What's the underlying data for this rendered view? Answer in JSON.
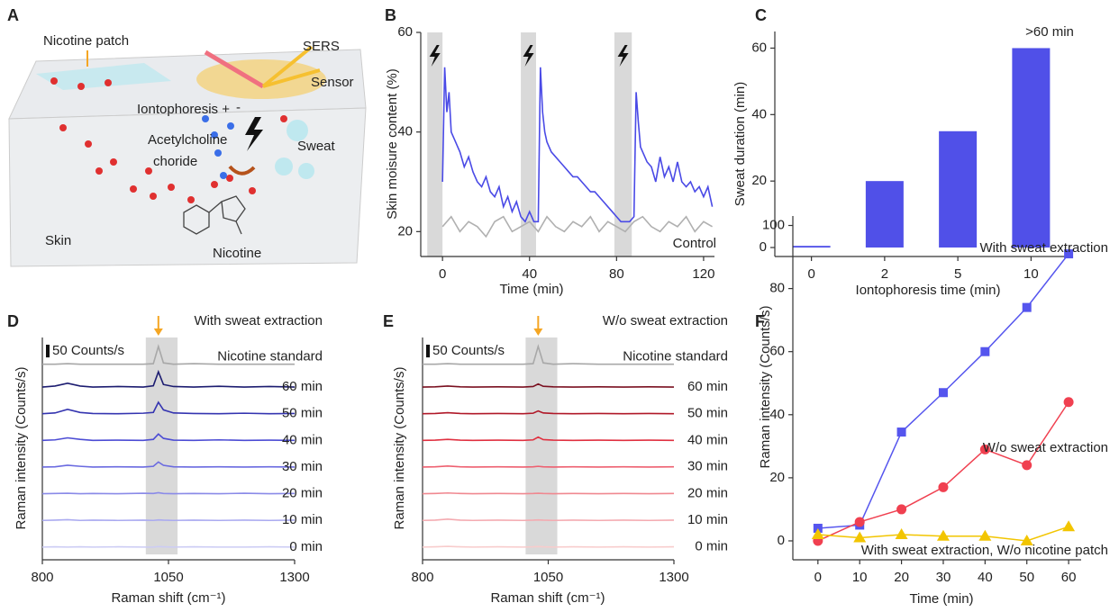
{
  "diagram": {
    "letter": "A",
    "labels": [
      "Nicotine patch",
      "SERS",
      "Sensor",
      "Iontophoresis +",
      "-",
      "Acetylcholine",
      "choride",
      "Sweat",
      "Skin",
      "Nicotine"
    ]
  },
  "chart_data": [
    {
      "type": "line",
      "letter": "B",
      "xlabel": "Time (min)",
      "ylabel": "Skin moisure content (%)",
      "xlim": [
        -10,
        125
      ],
      "ylim": [
        15,
        60
      ],
      "xticks": [
        0,
        40,
        80,
        120
      ],
      "yticks": [
        20,
        40,
        60
      ],
      "shaded_ranges": [
        [
          -7,
          0
        ],
        [
          36,
          43
        ],
        [
          79,
          87
        ]
      ],
      "series": [
        {
          "color": "#4a4ae6",
          "x": [
            0,
            1,
            2,
            3,
            4,
            6,
            8,
            10,
            12,
            14,
            16,
            18,
            20,
            22,
            24,
            26,
            28,
            30,
            32,
            34,
            36,
            38,
            40,
            42,
            44,
            45,
            46,
            47,
            48,
            50,
            52,
            54,
            56,
            58,
            60,
            62,
            64,
            66,
            68,
            70,
            72,
            74,
            76,
            78,
            80,
            82,
            84,
            86,
            88,
            89,
            90,
            91,
            92,
            94,
            96,
            98,
            100,
            102,
            104,
            106,
            108,
            110,
            112,
            114,
            116,
            118,
            120,
            122,
            124
          ],
          "values": [
            30,
            53,
            44,
            48,
            40,
            38,
            36,
            33,
            35,
            32,
            30,
            29,
            31,
            28,
            27,
            29,
            25,
            27,
            24,
            26,
            23,
            22,
            24,
            22,
            22,
            53,
            44,
            40,
            38,
            36,
            35,
            34,
            33,
            32,
            31,
            31,
            30,
            29,
            28,
            28,
            27,
            26,
            25,
            24,
            23,
            22,
            22,
            22,
            23,
            48,
            42,
            37,
            36,
            34,
            33,
            30,
            35,
            31,
            33,
            30,
            34,
            30,
            29,
            30,
            28,
            29,
            27,
            29,
            25
          ]
        },
        {
          "name": "Control",
          "color": "#b0b0b0",
          "x": [
            0,
            4,
            8,
            12,
            16,
            20,
            24,
            28,
            32,
            36,
            40,
            44,
            48,
            52,
            56,
            60,
            64,
            68,
            72,
            76,
            80,
            84,
            88,
            92,
            96,
            100,
            104,
            108,
            112,
            116,
            120,
            124
          ],
          "values": [
            21,
            23,
            20,
            22,
            21,
            19,
            22,
            23,
            20,
            21,
            22,
            20,
            23,
            21,
            20,
            22,
            21,
            23,
            20,
            22,
            21,
            20,
            22,
            23,
            21,
            20,
            22,
            21,
            23,
            20,
            22,
            21
          ]
        }
      ]
    },
    {
      "type": "bar",
      "letter": "C",
      "xlabel": "Iontophoresis time (min)",
      "ylabel": "Sweat duration (min)",
      "categories": [
        "0",
        "2",
        "5",
        "10"
      ],
      "values": [
        0.5,
        20,
        35,
        60
      ],
      "color": "#5050e8",
      "ylim": [
        -2.7,
        65
      ],
      "yticks": [
        0,
        20,
        40,
        60
      ],
      "annotation": ">60 min"
    },
    {
      "type": "spectra",
      "letter": "D",
      "title": "With sweat extraction",
      "xlabel": "Raman shift (cm⁻¹)",
      "ylabel": "Raman intensity (Counts/s)",
      "scale_bar_value": 50,
      "scale_bar_label": "50 Counts/s",
      "marker_x": 1030,
      "shaded_range": [
        1005,
        1068
      ],
      "xlim": [
        800,
        1300
      ],
      "xticks": [
        800,
        1050,
        1300
      ],
      "ylim": [
        0,
        875
      ],
      "x": [
        800,
        825,
        850,
        875,
        900,
        950,
        1000,
        1020,
        1030,
        1040,
        1060,
        1100,
        1150,
        1200,
        1250,
        1300
      ],
      "series": [
        {
          "name": "Nicotine standard",
          "color": "#a8a8a8",
          "values": [
            770,
            770,
            772,
            770,
            770,
            770,
            770,
            772,
            840,
            775,
            770,
            772,
            770,
            770,
            770,
            770
          ]
        },
        {
          "name": "60 min",
          "color": "#1c1c70",
          "values": [
            680,
            684,
            695,
            684,
            680,
            682,
            680,
            685,
            740,
            690,
            682,
            680,
            683,
            680,
            682,
            680
          ]
        },
        {
          "name": "50 min",
          "color": "#3434b0",
          "values": [
            575,
            578,
            592,
            580,
            576,
            575,
            577,
            580,
            620,
            590,
            578,
            576,
            575,
            577,
            575,
            576
          ]
        },
        {
          "name": "40 min",
          "color": "#4c4cd4",
          "values": [
            470,
            472,
            480,
            474,
            470,
            471,
            470,
            474,
            495,
            478,
            471,
            470,
            472,
            470,
            471,
            470
          ]
        },
        {
          "name": "30 min",
          "color": "#6a6ae0",
          "values": [
            365,
            366,
            372,
            368,
            365,
            366,
            365,
            368,
            385,
            372,
            366,
            365,
            366,
            365,
            366,
            365
          ]
        },
        {
          "name": "20 min",
          "color": "#8a8ae8",
          "values": [
            260,
            261,
            262,
            260,
            261,
            260,
            262,
            261,
            264,
            261,
            260,
            261,
            260,
            262,
            260,
            261
          ]
        },
        {
          "name": "10 min",
          "color": "#aaaaf0",
          "values": [
            155,
            156,
            158,
            155,
            156,
            155,
            156,
            155,
            157,
            156,
            155,
            156,
            155,
            156,
            155,
            156
          ]
        },
        {
          "name": "0 min",
          "color": "#ccccf4",
          "values": [
            50,
            51,
            50,
            51,
            50,
            51,
            50,
            50,
            52,
            51,
            50,
            51,
            50,
            50,
            51,
            50
          ]
        }
      ]
    },
    {
      "type": "spectra",
      "letter": "E",
      "title": "W/o sweat extraction",
      "xlabel": "Raman shift (cm⁻¹)",
      "ylabel": "Raman intensity (Counts/s)",
      "scale_bar_value": 50,
      "scale_bar_label": "50 Counts/s",
      "marker_x": 1030,
      "shaded_range": [
        1005,
        1068
      ],
      "xlim": [
        800,
        1300
      ],
      "xticks": [
        800,
        1050,
        1300
      ],
      "ylim": [
        0,
        875
      ],
      "x": [
        800,
        825,
        850,
        875,
        900,
        950,
        1000,
        1020,
        1030,
        1040,
        1060,
        1100,
        1150,
        1200,
        1250,
        1300
      ],
      "series": [
        {
          "name": "Nicotine standard",
          "color": "#a8a8a8",
          "values": [
            770,
            770,
            772,
            770,
            770,
            770,
            770,
            772,
            840,
            775,
            770,
            772,
            770,
            770,
            770,
            770
          ]
        },
        {
          "name": "60 min",
          "color": "#7a1020",
          "values": [
            680,
            681,
            684,
            681,
            680,
            681,
            680,
            682,
            692,
            683,
            681,
            680,
            681,
            680,
            681,
            680
          ]
        },
        {
          "name": "50 min",
          "color": "#b01828",
          "values": [
            575,
            576,
            579,
            576,
            575,
            576,
            575,
            577,
            586,
            578,
            576,
            575,
            576,
            575,
            576,
            575
          ]
        },
        {
          "name": "40 min",
          "color": "#e03040",
          "values": [
            470,
            471,
            474,
            471,
            470,
            471,
            470,
            472,
            483,
            473,
            471,
            470,
            471,
            470,
            471,
            470
          ]
        },
        {
          "name": "30 min",
          "color": "#ee6070",
          "values": [
            365,
            366,
            369,
            366,
            365,
            366,
            365,
            366,
            368,
            366,
            365,
            366,
            365,
            366,
            365,
            366
          ]
        },
        {
          "name": "20 min",
          "color": "#f08890",
          "values": [
            260,
            261,
            263,
            261,
            260,
            261,
            260,
            261,
            262,
            261,
            260,
            261,
            260,
            261,
            260,
            261
          ]
        },
        {
          "name": "10 min",
          "color": "#f4aab0",
          "values": [
            155,
            156,
            160,
            156,
            155,
            156,
            155,
            156,
            157,
            156,
            155,
            156,
            155,
            156,
            155,
            156
          ]
        },
        {
          "name": "0 min",
          "color": "#f8cccc",
          "values": [
            50,
            51,
            53,
            51,
            50,
            51,
            50,
            51,
            52,
            51,
            50,
            51,
            50,
            51,
            50,
            51
          ]
        }
      ]
    },
    {
      "type": "line",
      "letter": "F",
      "xlabel": "Time (min)",
      "ylabel": "Raman intensity (Counts/s)",
      "xlim": [
        -6,
        63
      ],
      "ylim": [
        -6,
        103
      ],
      "xticks": [
        0,
        10,
        20,
        30,
        40,
        50,
        60
      ],
      "yticks": [
        0,
        20,
        40,
        60,
        80,
        100
      ],
      "x": [
        0,
        10,
        20,
        30,
        40,
        50,
        60
      ],
      "series": [
        {
          "name": "With sweat extraction",
          "color": "#5555ee",
          "marker": "square",
          "values": [
            4,
            5,
            34.5,
            47,
            60,
            74,
            91
          ]
        },
        {
          "name": "W/o sweat extraction",
          "color": "#f04050",
          "marker": "circle",
          "values": [
            0,
            6,
            10,
            17,
            29,
            24,
            44
          ]
        },
        {
          "name": "With sweat extraction, W/o nicotine patch",
          "color": "#f2c500",
          "marker": "triangle",
          "values": [
            2,
            1,
            2,
            1.5,
            1.5,
            0,
            4.5
          ]
        }
      ]
    }
  ]
}
